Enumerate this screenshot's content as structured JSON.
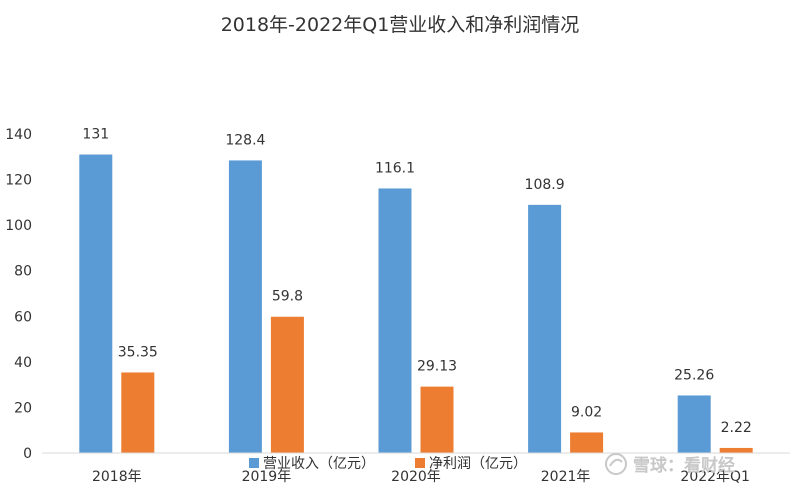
{
  "chart_data": {
    "type": "bar",
    "title": "2018年-2022年Q1营业收入和净利润情况",
    "categories": [
      "2018年",
      "2019年",
      "2020年",
      "2021年",
      "2022年Q1"
    ],
    "series": [
      {
        "name": "营业收入（亿元）",
        "color": "#5B9BD5",
        "values": [
          131,
          128.4,
          116.1,
          108.9,
          25.26
        ]
      },
      {
        "name": "净利润（亿元）",
        "color": "#ED7D31",
        "values": [
          35.35,
          59.8,
          29.13,
          9.02,
          2.22
        ]
      }
    ],
    "data_labels": [
      [
        "131",
        "128.4",
        "116.1",
        "108.9",
        "25.26"
      ],
      [
        "35.35",
        "59.8",
        "29.13",
        "9.02",
        "2.22"
      ]
    ],
    "yticks": [
      "0",
      "20",
      "40",
      "60",
      "80",
      "100",
      "120",
      "140"
    ],
    "ylim": [
      0,
      140
    ],
    "grid": false,
    "legend_position": "bottom"
  },
  "watermark": {
    "text": "雪球：看财经"
  }
}
